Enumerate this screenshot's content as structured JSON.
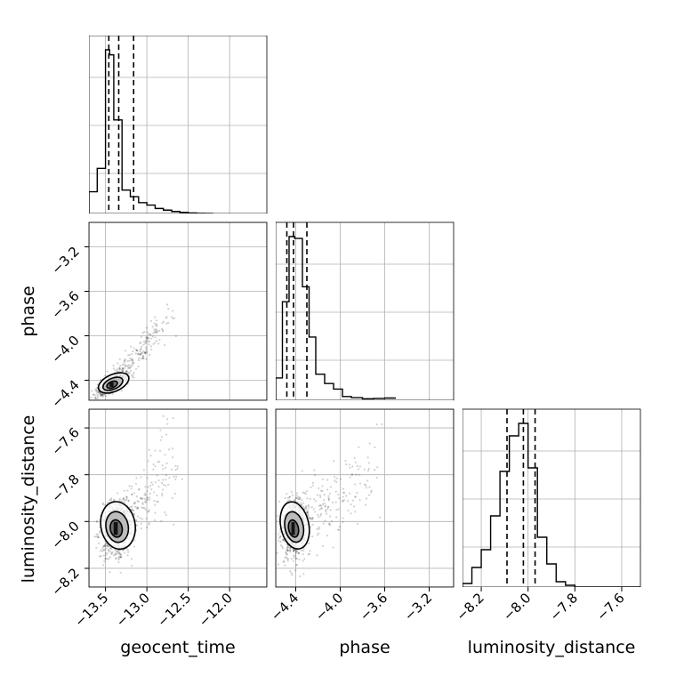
{
  "chart_data": {
    "type": "corner",
    "parameters": [
      "geocent_time",
      "phase",
      "luminosity_distance"
    ],
    "ranges": {
      "geocent_time": [
        -13.7,
        -11.55
      ],
      "phase": [
        -4.58,
        -2.98
      ],
      "luminosity_distance": [
        -8.28,
        -7.52
      ]
    },
    "ticks": {
      "geocent_time": [
        "−13.5",
        "−13.0",
        "−12.5",
        "−12.0"
      ],
      "geocent_time_values": [
        -13.5,
        -13.0,
        -12.5,
        -12.0
      ],
      "phase": [
        "−4.4",
        "−4.0",
        "−3.6",
        "−3.2"
      ],
      "phase_values": [
        -4.4,
        -4.0,
        -3.6,
        -3.2
      ],
      "luminosity_distance": [
        "−8.2",
        "−8.0",
        "−7.8",
        "−7.6"
      ],
      "luminosity_distance_values": [
        -8.2,
        -8.0,
        -7.8,
        -7.6
      ]
    },
    "quantile_lines": {
      "geocent_time": [
        -13.46,
        -13.34,
        -13.16
      ],
      "phase": [
        -4.48,
        -4.42,
        -4.3
      ],
      "luminosity_distance": [
        -8.09,
        -8.02,
        -7.97
      ]
    },
    "histograms": {
      "geocent_time": {
        "edges": [
          -13.7,
          -13.6,
          -13.5,
          -13.45,
          -13.4,
          -13.3,
          -13.2,
          -13.1,
          -13.0,
          -12.9,
          -12.8,
          -12.7,
          -12.6,
          -12.5,
          -12.4,
          -12.3,
          -12.2
        ],
        "counts": [
          0.13,
          0.27,
          0.98,
          0.95,
          0.56,
          0.14,
          0.1,
          0.065,
          0.05,
          0.03,
          0.02,
          0.012,
          0.006,
          0.003,
          0.001,
          0.0
        ]
      },
      "phase": {
        "edges": [
          -4.6,
          -4.52,
          -4.46,
          -4.41,
          -4.34,
          -4.28,
          -4.22,
          -4.14,
          -4.06,
          -3.98,
          -3.9,
          -3.8,
          -3.7,
          -3.6,
          -3.5
        ],
        "counts": [
          0.12,
          0.53,
          0.88,
          0.87,
          0.61,
          0.34,
          0.14,
          0.09,
          0.06,
          0.02,
          0.014,
          0.008,
          0.01,
          0.012
        ]
      },
      "luminosity_distance": {
        "edges": [
          -8.28,
          -8.24,
          -8.2,
          -8.16,
          -8.12,
          -8.08,
          -8.04,
          -8.0,
          -7.96,
          -7.92,
          -7.88,
          -7.84,
          -7.8,
          -7.52
        ],
        "counts": [
          0.02,
          0.11,
          0.21,
          0.4,
          0.65,
          0.85,
          0.92,
          0.67,
          0.28,
          0.13,
          0.03,
          0.01,
          0.0
        ]
      }
    }
  },
  "labels": {
    "x_geocent_time": "geocent_time",
    "x_phase": "phase",
    "x_luminosity_distance": "luminosity_distance",
    "y_phase": "phase",
    "y_luminosity_distance": "luminosity_distance"
  }
}
